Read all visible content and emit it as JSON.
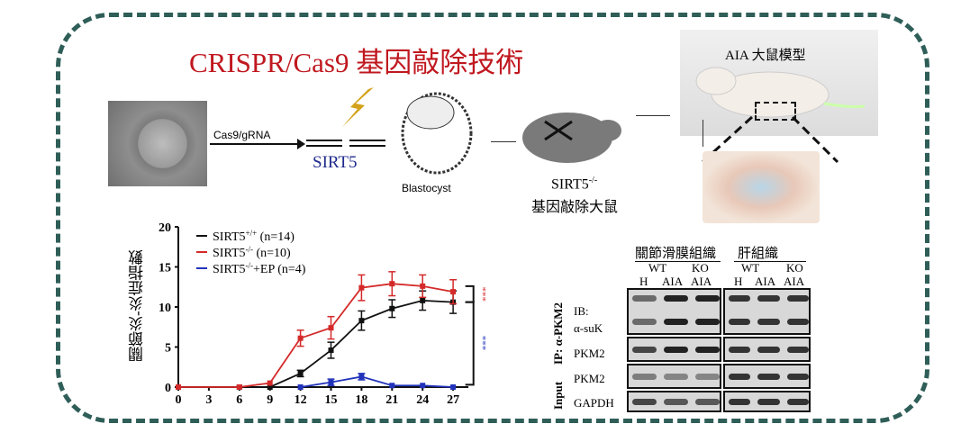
{
  "title": "CRISPR/Cas9 基因敲除技術",
  "pipeline": {
    "arrow1_label": "Cas9/gRNA",
    "gene_label": "SIRT5",
    "blastocyst_label": "Blastocyst",
    "ko_mouse_label": "SIRT5",
    "ko_mouse_sup": "-/-",
    "ko_mouse_caption": "基因敲除大鼠",
    "aia_label": "AIA 大鼠模型"
  },
  "colors": {
    "frame": "#2f5e58",
    "title": "#c0181f",
    "gene": "#1f2a8c"
  },
  "chart_data": {
    "type": "line",
    "ylabel": "關節炎-炎症指數",
    "xlabel": "",
    "xlim": [
      0,
      28
    ],
    "ylim": [
      0,
      20
    ],
    "x_ticks": [
      "0",
      "3",
      "6",
      "9",
      "12",
      "15",
      "18",
      "21",
      "24",
      "27"
    ],
    "y_ticks": [
      "0",
      "5",
      "10",
      "15",
      "20"
    ],
    "legend_position": "top-left",
    "series": [
      {
        "name": "SIRT5",
        "sup": "+/+",
        "n": "(n=14)",
        "color": "#111111",
        "x": [
          0,
          6,
          9,
          12,
          15,
          18,
          21,
          24,
          27
        ],
        "values": [
          0,
          0,
          0,
          1.7,
          4.6,
          8.3,
          9.8,
          10.8,
          10.6
        ],
        "err": [
          0,
          0,
          0,
          0.4,
          1.0,
          1.2,
          1.1,
          1.2,
          1.4
        ]
      },
      {
        "name": "SIRT5",
        "sup": "-/-",
        "n": "(n=10)",
        "color": "#d42a2a",
        "x": [
          0,
          6,
          9,
          12,
          15,
          18,
          21,
          24,
          27
        ],
        "values": [
          0,
          0,
          0.5,
          6.1,
          7.4,
          12.4,
          12.9,
          12.6,
          11.9
        ],
        "err": [
          0,
          0,
          0,
          1.0,
          1.4,
          1.6,
          1.5,
          1.4,
          1.5
        ]
      },
      {
        "name": "SIRT5",
        "sup": "-/-",
        "suffix": "+EP",
        "n": "(n=4)",
        "color": "#2233bb",
        "x": [
          12,
          15,
          18,
          21,
          24,
          27
        ],
        "values": [
          0,
          0.6,
          1.3,
          0.2,
          0.2,
          0
        ],
        "err": [
          0,
          0.4,
          0.4,
          0,
          0,
          0
        ]
      }
    ],
    "annotations": [
      {
        "text": "***",
        "color": "#d42a2a"
      },
      {
        "text": "***",
        "color": "#2233bb"
      }
    ]
  },
  "western_blot": {
    "group1": "關節滑膜組織",
    "group2": "肝組織",
    "wt": "WT",
    "ko": "KO",
    "lanes": [
      "H",
      "AIA",
      "AIA"
    ],
    "ip_label": "IP:  α-PKM2",
    "input_label": "Input",
    "rows": [
      "IB:",
      "α-suK",
      "PKM2",
      "PKM2",
      "GAPDH"
    ]
  }
}
